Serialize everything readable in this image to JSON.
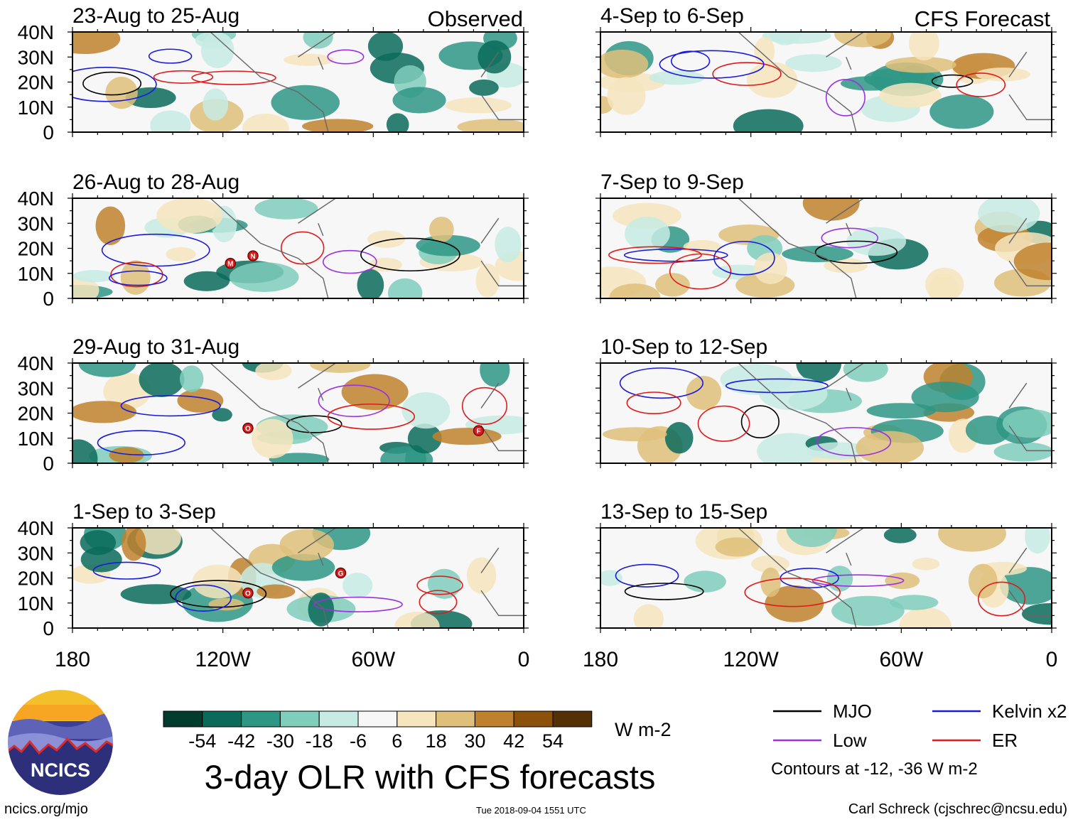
{
  "title": "3-day OLR with CFS forecasts",
  "colorbar": {
    "units": "W m-2",
    "ticks": [
      "-54",
      "-42",
      "-30",
      "-18",
      "-6",
      "6",
      "18",
      "30",
      "42",
      "54"
    ],
    "colors": [
      "#003d2e",
      "#0b6b5a",
      "#2e9685",
      "#7fcdbb",
      "#c7ebe4",
      "#f7f7f7",
      "#f6e5bd",
      "#dfc07a",
      "#bf812d",
      "#8c510a",
      "#543005"
    ]
  },
  "legend": {
    "items": [
      {
        "label": "MJO",
        "color": "#000000"
      },
      {
        "label": "Kelvin x2",
        "color": "#1a1adb"
      },
      {
        "label": "Low",
        "color": "#9b30e0"
      },
      {
        "label": "ER",
        "color": "#e01b1b"
      }
    ],
    "note": "Contours at -12, -36 W m-2"
  },
  "logo": {
    "text": "NCICS"
  },
  "footer": {
    "left": "ncics.org/mjo",
    "center": "Tue 2018-09-04 1551 UTC",
    "right": "Carl Schreck (cjschrec@ncsu.edu)"
  },
  "chart_data": {
    "type": "heatmap",
    "description_units": "OLR anomaly, W m-2",
    "lon_ticks": [
      "180",
      "120W",
      "60W",
      "0"
    ],
    "lat_ticks": [
      "40N",
      "30N",
      "20N",
      "10N",
      "0"
    ],
    "xlim": [
      -180,
      0
    ],
    "ylim": [
      0,
      40
    ],
    "columns": [
      {
        "header": "Observed",
        "panels": [
          {
            "title": "23-Aug to 25-Aug",
            "storms": []
          },
          {
            "title": "26-Aug to 28-Aug",
            "storms": [
              {
                "label": "M",
                "lon": -117,
                "lat": 14
              },
              {
                "label": "N",
                "lon": -108,
                "lat": 17
              }
            ]
          },
          {
            "title": "29-Aug to 31-Aug",
            "storms": [
              {
                "label": "O",
                "lon": -110,
                "lat": 14
              },
              {
                "label": "F",
                "lon": -18,
                "lat": 13
              }
            ]
          },
          {
            "title": "1-Sep to 3-Sep",
            "storms": [
              {
                "label": "O",
                "lon": -110,
                "lat": 14
              },
              {
                "label": "G",
                "lon": -73,
                "lat": 22
              }
            ]
          }
        ]
      },
      {
        "header": "CFS Forecast",
        "panels": [
          {
            "title": "4-Sep to 6-Sep",
            "storms": []
          },
          {
            "title": "7-Sep to 9-Sep",
            "storms": []
          },
          {
            "title": "10-Sep to 12-Sep",
            "storms": []
          },
          {
            "title": "13-Sep to 15-Sep",
            "storms": []
          }
        ]
      }
    ]
  }
}
